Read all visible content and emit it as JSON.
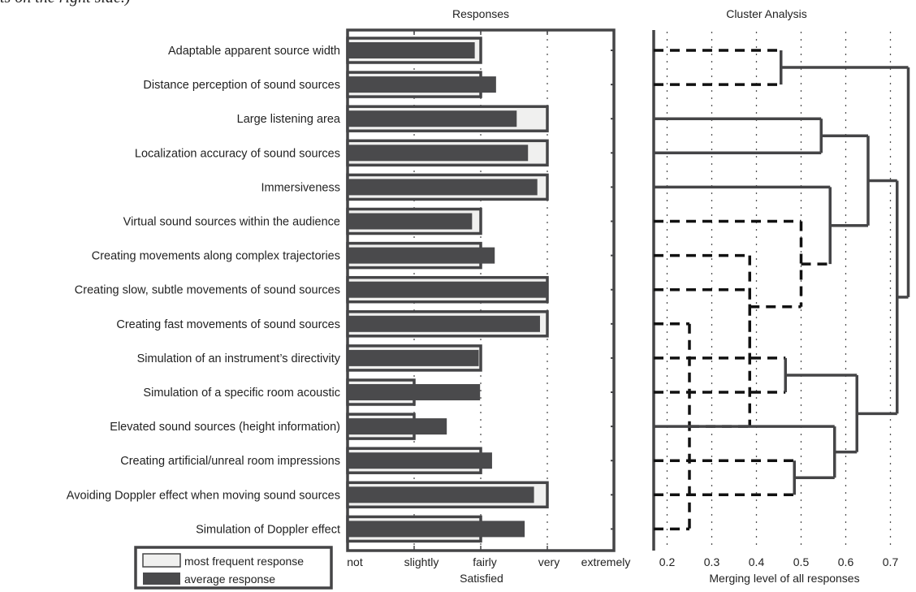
{
  "top_fragment": "ts on the right side.)",
  "chart_data": [
    {
      "type": "bar",
      "title": "Responses",
      "xlabel": "Satisfied",
      "x_ticks": [
        "not",
        "slightly",
        "fairly",
        "very",
        "extremely"
      ],
      "xlim": [
        0,
        4
      ],
      "orientation": "horizontal",
      "grid": true,
      "categories": [
        "Adaptable apparent source width",
        "Distance perception of sound sources",
        "Large listening area",
        "Localization accuracy of sound sources",
        "Immersiveness",
        "Virtual sound sources within the audience",
        "Creating movements along complex trajectories",
        "Creating slow, subtle movements of sound sources",
        "Creating fast movements of sound sources",
        "Simulation of an instrument’s directivity",
        "Simulation of a specific room acoustic",
        "Elevated sound sources (height information)",
        "Creating artificial/unreal room impressions",
        "Avoiding Doppler effect when moving sound sources",
        "Simulation of Doppler effect"
      ],
      "series": [
        {
          "name": "most frequent response",
          "color": "#f0f0ef",
          "values": [
            2,
            2,
            3,
            3,
            3,
            2,
            2,
            3,
            3,
            2,
            1,
            1,
            2,
            3,
            2
          ]
        },
        {
          "name": "average response",
          "color": "#4a4a4c",
          "values": [
            1.91,
            2.23,
            2.54,
            2.71,
            2.85,
            1.87,
            2.21,
            3.0,
            2.89,
            1.97,
            1.99,
            1.49,
            2.17,
            2.8,
            2.66
          ]
        }
      ],
      "legend_position": "bottom-left"
    },
    {
      "type": "dendrogram",
      "title": "Cluster Analysis",
      "xlabel": "Merging level of all responses",
      "x_ticks": [
        "0.2",
        "0.3",
        "0.4",
        "0.5",
        "0.6",
        "0.7"
      ],
      "xlim": [
        0.17,
        0.75
      ],
      "leaf_style": [
        "dashed",
        "dashed",
        "solid",
        "solid",
        "solid",
        "dashed",
        "dashed",
        "dashed",
        "dashed",
        "dashed",
        "dashed",
        "solid",
        "dashed",
        "dashed",
        "dashed"
      ],
      "merges": [
        {
          "id": "m1",
          "children": [
            "L0",
            "L1"
          ],
          "level": 0.455,
          "style": "solid"
        },
        {
          "id": "m2",
          "children": [
            "L2",
            "L3"
          ],
          "level": 0.545,
          "style": "solid"
        },
        {
          "id": "m3",
          "children": [
            "L8",
            "L14"
          ],
          "level": 0.25,
          "style": "dashed"
        },
        {
          "id": "m4",
          "children": [
            "L7",
            "m3"
          ],
          "level": 0.385,
          "style": "dashed"
        },
        {
          "id": "m5",
          "children": [
            "L6",
            "m4"
          ],
          "level": 0.385,
          "style": "dashed"
        },
        {
          "id": "m6",
          "children": [
            "L5",
            "m5"
          ],
          "level": 0.5,
          "style": "dashed"
        },
        {
          "id": "m7",
          "children": [
            "L4",
            "m6"
          ],
          "level": 0.565,
          "style": "solid"
        },
        {
          "id": "m8",
          "children": [
            "m2",
            "m7"
          ],
          "level": 0.65,
          "style": "solid"
        },
        {
          "id": "m9",
          "children": [
            "L9",
            "L10"
          ],
          "level": 0.465,
          "style": "solid"
        },
        {
          "id": "m10",
          "children": [
            "L12",
            "L13"
          ],
          "level": 0.485,
          "style": "solid"
        },
        {
          "id": "m11",
          "children": [
            "L11",
            "m10"
          ],
          "level": 0.575,
          "style": "solid"
        },
        {
          "id": "m12",
          "children": [
            "m9",
            "m11"
          ],
          "level": 0.625,
          "style": "solid"
        },
        {
          "id": "m13",
          "children": [
            "m8",
            "m12"
          ],
          "level": 0.715,
          "style": "solid"
        },
        {
          "id": "m14",
          "children": [
            "m1",
            "m13"
          ],
          "level": 0.74,
          "style": "solid"
        }
      ]
    }
  ]
}
